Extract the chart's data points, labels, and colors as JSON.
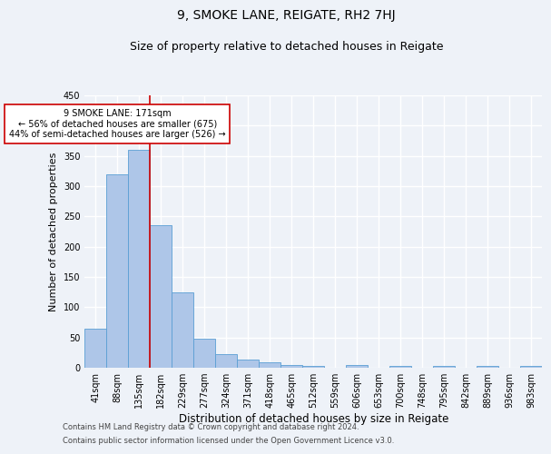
{
  "title": "9, SMOKE LANE, REIGATE, RH2 7HJ",
  "subtitle": "Size of property relative to detached houses in Reigate",
  "xlabel": "Distribution of detached houses by size in Reigate",
  "ylabel": "Number of detached properties",
  "footer1": "Contains HM Land Registry data © Crown copyright and database right 2024.",
  "footer2": "Contains public sector information licensed under the Open Government Licence v3.0.",
  "bin_labels": [
    "41sqm",
    "88sqm",
    "135sqm",
    "182sqm",
    "229sqm",
    "277sqm",
    "324sqm",
    "371sqm",
    "418sqm",
    "465sqm",
    "512sqm",
    "559sqm",
    "606sqm",
    "653sqm",
    "700sqm",
    "748sqm",
    "795sqm",
    "842sqm",
    "889sqm",
    "936sqm",
    "983sqm"
  ],
  "bar_heights": [
    65,
    320,
    360,
    235,
    125,
    48,
    23,
    14,
    9,
    5,
    3,
    0,
    4,
    0,
    3,
    0,
    3,
    0,
    3,
    0,
    3
  ],
  "bar_color": "#aec6e8",
  "bar_edge_color": "#5a9fd4",
  "property_line_x": 3,
  "property_line_color": "#cc0000",
  "annotation_line1": "9 SMOKE LANE: 171sqm",
  "annotation_line2": "← 56% of detached houses are smaller (675)",
  "annotation_line3": "44% of semi-detached houses are larger (526) →",
  "annotation_box_color": "#ffffff",
  "annotation_box_edge_color": "#cc0000",
  "ylim": [
    0,
    450
  ],
  "yticks": [
    0,
    50,
    100,
    150,
    200,
    250,
    300,
    350,
    400,
    450
  ],
  "bg_color": "#eef2f8",
  "plot_bg_color": "#eef2f8",
  "grid_color": "#ffffff",
  "title_fontsize": 10,
  "subtitle_fontsize": 9,
  "xlabel_fontsize": 8.5,
  "ylabel_fontsize": 8,
  "tick_fontsize": 7,
  "footer_fontsize": 6
}
